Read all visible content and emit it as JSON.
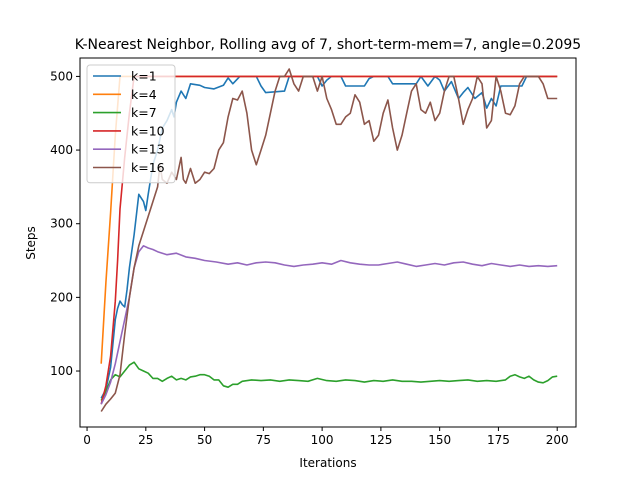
{
  "chart_data": {
    "type": "line",
    "title": "K-Nearest Neighbor, Rolling avg of 7, short-term-mem=7, angle=0.2095",
    "xlabel": "Iterations",
    "ylabel": "Steps",
    "xlim": [
      -3,
      208
    ],
    "ylim": [
      24,
      525
    ],
    "xticks": [
      0,
      25,
      50,
      75,
      100,
      125,
      150,
      175,
      200
    ],
    "yticks": [
      100,
      200,
      300,
      400,
      500
    ],
    "grid": false,
    "legend_position": "top-left",
    "series": [
      {
        "name": "k=1",
        "color": "#1f77b4",
        "points": [
          [
            6,
            63
          ],
          [
            8,
            75
          ],
          [
            10,
            105
          ],
          [
            12,
            170
          ],
          [
            13,
            185
          ],
          [
            14,
            195
          ],
          [
            15,
            190
          ],
          [
            16,
            187
          ],
          [
            17,
            210
          ],
          [
            18,
            240
          ],
          [
            20,
            285
          ],
          [
            22,
            340
          ],
          [
            24,
            330
          ],
          [
            25,
            318
          ],
          [
            26,
            340
          ],
          [
            28,
            380
          ],
          [
            30,
            400
          ],
          [
            32,
            430
          ],
          [
            34,
            440
          ],
          [
            36,
            455
          ],
          [
            37,
            445
          ],
          [
            38,
            465
          ],
          [
            40,
            480
          ],
          [
            42,
            470
          ],
          [
            44,
            490
          ],
          [
            48,
            488
          ],
          [
            50,
            485
          ],
          [
            54,
            483
          ],
          [
            58,
            488
          ],
          [
            60,
            498
          ],
          [
            62,
            490
          ],
          [
            65,
            500
          ],
          [
            72,
            500
          ],
          [
            74,
            487
          ],
          [
            76,
            478
          ],
          [
            84,
            480
          ],
          [
            86,
            500
          ],
          [
            98,
            500
          ],
          [
            100,
            487
          ],
          [
            102,
            495
          ],
          [
            104,
            500
          ],
          [
            108,
            500
          ],
          [
            110,
            487
          ],
          [
            118,
            487
          ],
          [
            120,
            497
          ],
          [
            122,
            500
          ],
          [
            128,
            500
          ],
          [
            130,
            490
          ],
          [
            140,
            490
          ],
          [
            142,
            500
          ],
          [
            145,
            487
          ],
          [
            148,
            500
          ],
          [
            150,
            495
          ],
          [
            152,
            480
          ],
          [
            155,
            493
          ],
          [
            158,
            470
          ],
          [
            160,
            478
          ],
          [
            162,
            485
          ],
          [
            165,
            470
          ],
          [
            168,
            478
          ],
          [
            170,
            457
          ],
          [
            172,
            470
          ],
          [
            174,
            460
          ],
          [
            176,
            487
          ],
          [
            185,
            487
          ],
          [
            187,
            500
          ],
          [
            200,
            500
          ]
        ]
      },
      {
        "name": "k=4",
        "color": "#ff7f0e",
        "points": [
          [
            6,
            110
          ],
          [
            8,
            220
          ],
          [
            10,
            315
          ],
          [
            12,
            420
          ],
          [
            14,
            500
          ],
          [
            200,
            500
          ]
        ]
      },
      {
        "name": "k=7",
        "color": "#2ca02c",
        "points": [
          [
            6,
            60
          ],
          [
            8,
            72
          ],
          [
            10,
            88
          ],
          [
            12,
            95
          ],
          [
            14,
            92
          ],
          [
            16,
            100
          ],
          [
            18,
            108
          ],
          [
            20,
            112
          ],
          [
            22,
            103
          ],
          [
            24,
            100
          ],
          [
            26,
            97
          ],
          [
            28,
            90
          ],
          [
            30,
            90
          ],
          [
            32,
            86
          ],
          [
            34,
            90
          ],
          [
            36,
            93
          ],
          [
            38,
            88
          ],
          [
            40,
            90
          ],
          [
            42,
            88
          ],
          [
            44,
            92
          ],
          [
            46,
            93
          ],
          [
            48,
            95
          ],
          [
            50,
            95
          ],
          [
            52,
            93
          ],
          [
            54,
            88
          ],
          [
            56,
            88
          ],
          [
            58,
            80
          ],
          [
            60,
            78
          ],
          [
            62,
            82
          ],
          [
            64,
            82
          ],
          [
            66,
            86
          ],
          [
            70,
            88
          ],
          [
            74,
            87
          ],
          [
            78,
            88
          ],
          [
            82,
            86
          ],
          [
            86,
            88
          ],
          [
            90,
            87
          ],
          [
            94,
            86
          ],
          [
            98,
            90
          ],
          [
            102,
            87
          ],
          [
            106,
            86
          ],
          [
            110,
            88
          ],
          [
            114,
            87
          ],
          [
            118,
            85
          ],
          [
            122,
            87
          ],
          [
            126,
            86
          ],
          [
            130,
            88
          ],
          [
            134,
            86
          ],
          [
            138,
            86
          ],
          [
            142,
            85
          ],
          [
            146,
            86
          ],
          [
            150,
            87
          ],
          [
            154,
            86
          ],
          [
            158,
            87
          ],
          [
            162,
            88
          ],
          [
            166,
            86
          ],
          [
            170,
            87
          ],
          [
            174,
            86
          ],
          [
            178,
            88
          ],
          [
            180,
            93
          ],
          [
            182,
            95
          ],
          [
            184,
            92
          ],
          [
            186,
            90
          ],
          [
            188,
            93
          ],
          [
            190,
            88
          ],
          [
            192,
            85
          ],
          [
            194,
            84
          ],
          [
            196,
            87
          ],
          [
            198,
            92
          ],
          [
            200,
            93
          ]
        ]
      },
      {
        "name": "k=10",
        "color": "#d62728",
        "points": [
          [
            6,
            55
          ],
          [
            8,
            80
          ],
          [
            10,
            120
          ],
          [
            12,
            195
          ],
          [
            13,
            250
          ],
          [
            14,
            320
          ],
          [
            16,
            390
          ],
          [
            18,
            450
          ],
          [
            20,
            500
          ],
          [
            200,
            500
          ]
        ]
      },
      {
        "name": "k=13",
        "color": "#9467bd",
        "points": [
          [
            6,
            55
          ],
          [
            8,
            68
          ],
          [
            10,
            85
          ],
          [
            12,
            110
          ],
          [
            14,
            140
          ],
          [
            16,
            170
          ],
          [
            18,
            200
          ],
          [
            20,
            240
          ],
          [
            22,
            262
          ],
          [
            24,
            270
          ],
          [
            26,
            267
          ],
          [
            28,
            265
          ],
          [
            30,
            262
          ],
          [
            32,
            260
          ],
          [
            34,
            258
          ],
          [
            38,
            260
          ],
          [
            42,
            255
          ],
          [
            46,
            253
          ],
          [
            50,
            250
          ],
          [
            55,
            248
          ],
          [
            60,
            245
          ],
          [
            64,
            247
          ],
          [
            68,
            244
          ],
          [
            72,
            247
          ],
          [
            76,
            248
          ],
          [
            80,
            247
          ],
          [
            84,
            244
          ],
          [
            88,
            242
          ],
          [
            92,
            244
          ],
          [
            96,
            245
          ],
          [
            100,
            247
          ],
          [
            104,
            245
          ],
          [
            108,
            250
          ],
          [
            112,
            247
          ],
          [
            116,
            245
          ],
          [
            120,
            244
          ],
          [
            124,
            244
          ],
          [
            128,
            246
          ],
          [
            132,
            248
          ],
          [
            136,
            245
          ],
          [
            140,
            242
          ],
          [
            144,
            244
          ],
          [
            148,
            246
          ],
          [
            152,
            244
          ],
          [
            156,
            247
          ],
          [
            160,
            248
          ],
          [
            164,
            245
          ],
          [
            168,
            243
          ],
          [
            172,
            246
          ],
          [
            176,
            244
          ],
          [
            180,
            242
          ],
          [
            184,
            244
          ],
          [
            188,
            242
          ],
          [
            192,
            243
          ],
          [
            196,
            242
          ],
          [
            200,
            243
          ]
        ]
      },
      {
        "name": "k=16",
        "color": "#8c564b",
        "points": [
          [
            6,
            45
          ],
          [
            8,
            55
          ],
          [
            10,
            62
          ],
          [
            12,
            70
          ],
          [
            14,
            95
          ],
          [
            16,
            150
          ],
          [
            18,
            200
          ],
          [
            20,
            240
          ],
          [
            22,
            270
          ],
          [
            24,
            290
          ],
          [
            26,
            310
          ],
          [
            28,
            330
          ],
          [
            30,
            350
          ],
          [
            31,
            380
          ],
          [
            32,
            360
          ],
          [
            34,
            355
          ],
          [
            36,
            370
          ],
          [
            38,
            360
          ],
          [
            40,
            390
          ],
          [
            41,
            360
          ],
          [
            42,
            355
          ],
          [
            44,
            375
          ],
          [
            46,
            355
          ],
          [
            48,
            360
          ],
          [
            50,
            370
          ],
          [
            52,
            368
          ],
          [
            54,
            375
          ],
          [
            56,
            400
          ],
          [
            58,
            410
          ],
          [
            60,
            445
          ],
          [
            62,
            470
          ],
          [
            64,
            468
          ],
          [
            66,
            480
          ],
          [
            68,
            450
          ],
          [
            70,
            400
          ],
          [
            72,
            380
          ],
          [
            74,
            400
          ],
          [
            76,
            420
          ],
          [
            78,
            450
          ],
          [
            80,
            480
          ],
          [
            82,
            500
          ],
          [
            84,
            500
          ],
          [
            86,
            510
          ],
          [
            88,
            490
          ],
          [
            90,
            480
          ],
          [
            92,
            500
          ],
          [
            96,
            500
          ],
          [
            98,
            480
          ],
          [
            100,
            500
          ],
          [
            102,
            470
          ],
          [
            104,
            455
          ],
          [
            106,
            435
          ],
          [
            108,
            435
          ],
          [
            110,
            445
          ],
          [
            112,
            450
          ],
          [
            114,
            475
          ],
          [
            116,
            465
          ],
          [
            118,
            435
          ],
          [
            120,
            440
          ],
          [
            122,
            412
          ],
          [
            124,
            420
          ],
          [
            126,
            450
          ],
          [
            128,
            468
          ],
          [
            130,
            430
          ],
          [
            132,
            400
          ],
          [
            134,
            420
          ],
          [
            136,
            450
          ],
          [
            138,
            480
          ],
          [
            140,
            490
          ],
          [
            142,
            455
          ],
          [
            144,
            450
          ],
          [
            146,
            465
          ],
          [
            148,
            440
          ],
          [
            150,
            450
          ],
          [
            152,
            480
          ],
          [
            154,
            500
          ],
          [
            156,
            500
          ],
          [
            158,
            470
          ],
          [
            160,
            435
          ],
          [
            162,
            455
          ],
          [
            164,
            470
          ],
          [
            166,
            500
          ],
          [
            168,
            490
          ],
          [
            170,
            430
          ],
          [
            172,
            440
          ],
          [
            174,
            500
          ],
          [
            176,
            480
          ],
          [
            178,
            450
          ],
          [
            180,
            448
          ],
          [
            182,
            460
          ],
          [
            184,
            490
          ],
          [
            186,
            500
          ],
          [
            188,
            500
          ],
          [
            190,
            500
          ],
          [
            192,
            500
          ],
          [
            194,
            490
          ],
          [
            196,
            470
          ],
          [
            198,
            470
          ],
          [
            200,
            470
          ]
        ]
      }
    ]
  }
}
